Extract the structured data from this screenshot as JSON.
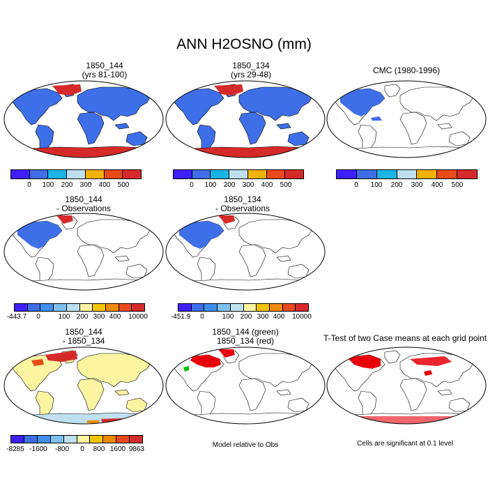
{
  "title": "ANN H2OSNO (mm)",
  "colors": {
    "seq7": [
      "#3F1FFF",
      "#3E6FE8",
      "#1CB4E6",
      "#BFE0F0",
      "#F3B200",
      "#E84A19",
      "#D62A2A"
    ],
    "div10": [
      "#3F1FFF",
      "#3E6FE8",
      "#3E8FF0",
      "#7FC0F0",
      "#BFE0F0",
      "#FBF4A0",
      "#F6C500",
      "#F08A00",
      "#E84A19",
      "#D62A2A"
    ],
    "snow_blue": "#3E6FE8",
    "snow_red": "#D62A2A",
    "diff_yellow": "#FBF4A0",
    "sig_red": "#E8000B",
    "green": "#00C000"
  },
  "panels": [
    {
      "line1": "1850_144",
      "line2": "(yrs 81-100)",
      "ticks": [
        "0",
        "100",
        "200",
        "300",
        "400",
        "500"
      ]
    },
    {
      "line1": "1850_134",
      "line2": "(yrs 29-48)",
      "ticks": [
        "0",
        "100",
        "200",
        "300",
        "400",
        "500"
      ]
    },
    {
      "line1": "CMC (1980-1996)",
      "line2": "",
      "ticks": [
        "0",
        "100",
        "200",
        "300",
        "400",
        "500"
      ]
    },
    {
      "line1": "1850_144",
      "line2": "- Observations",
      "ticks": [
        "-443.7",
        "0",
        "100",
        "200",
        "300",
        "400",
        "10000"
      ]
    },
    {
      "line1": "1850_134",
      "line2": "- Observations",
      "ticks": [
        "-451.9",
        "0",
        "100",
        "200",
        "300",
        "400",
        "10000"
      ]
    },
    {
      "line1": "1850_144",
      "line2": "- 1850_134",
      "ticks": [
        "-8285",
        "-1600",
        "-800",
        "0",
        "800",
        "1600",
        "9863"
      ]
    },
    {
      "line1": "1850_144 (green)",
      "line2": "1850_134 (red)",
      "caption": "Model relative to Obs"
    },
    {
      "line1": "T-Test of two Case means at each grid point",
      "line2": "",
      "caption": "Cells are significant at 0.1 level"
    }
  ]
}
